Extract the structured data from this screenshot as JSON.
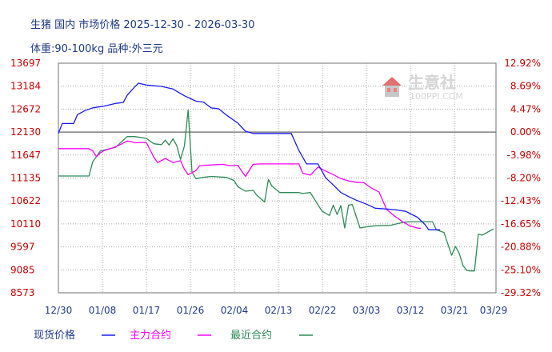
{
  "header": {
    "line1": "生猪  国内  市场价格  2025-12-30 - 2026-03-30",
    "line2": "体重:90-100kg  品种:外三元"
  },
  "watermark": {
    "name": "生意社",
    "url": "100PPI.COM"
  },
  "colors": {
    "title": "#1f3a8a",
    "left_axis": "#cc0000",
    "right_axis": "#cc0000",
    "spot": "#1a1aff",
    "main_contract": "#ff00ff",
    "recent_contract": "#2e8b57",
    "grid": "#a9a9a9",
    "baseline": "#808080"
  },
  "chart_data": {
    "type": "line",
    "ylim": [
      8573,
      13697
    ],
    "ylim_right": [
      -29.32,
      12.92
    ],
    "grid": true,
    "legend_position": "bottom-left",
    "y_ticks_left": [
      "13697",
      "13184",
      "12672",
      "12130",
      "11647",
      "11135",
      "10622",
      "10110",
      "9597",
      "9085",
      "8573"
    ],
    "y_ticks_right": [
      "12.92%",
      "8.69%",
      "4.47%",
      "0.00%",
      "-3.98%",
      "-8.20%",
      "-12.43%",
      "-16.65%",
      "-20.88%",
      "-25.10%",
      "-29.32%"
    ],
    "x_ticks": [
      "12/30",
      "01/08",
      "01/17",
      "01/26",
      "02/04",
      "02/13",
      "02/22",
      "03/03",
      "03/12",
      "03/21",
      "03/29"
    ],
    "x_tick_days": [
      0,
      9,
      18,
      27,
      36,
      45,
      54,
      63,
      72,
      81,
      89
    ],
    "series": [
      {
        "name": "现货价格",
        "color": "#1a1aff",
        "points": [
          [
            0,
            12130
          ],
          [
            1,
            12350
          ],
          [
            4,
            12350
          ],
          [
            5,
            12550
          ],
          [
            7,
            12640
          ],
          [
            9,
            12700
          ],
          [
            12,
            12740
          ],
          [
            15,
            12800
          ],
          [
            17,
            12820
          ],
          [
            18,
            12980
          ],
          [
            20,
            13170
          ],
          [
            21,
            13250
          ],
          [
            23,
            13210
          ],
          [
            27,
            13180
          ],
          [
            30,
            13120
          ],
          [
            33,
            12970
          ],
          [
            36,
            12850
          ],
          [
            38,
            12830
          ],
          [
            40,
            12700
          ],
          [
            42,
            12680
          ],
          [
            44,
            12540
          ],
          [
            47,
            12360
          ],
          [
            49,
            12180
          ],
          [
            51,
            12130
          ],
          [
            56,
            12130
          ],
          [
            61,
            12130
          ],
          [
            63,
            11750
          ],
          [
            65,
            11450
          ],
          [
            68,
            11450
          ],
          [
            70,
            11140
          ],
          [
            72,
            10980
          ],
          [
            74,
            10810
          ],
          [
            76,
            10720
          ],
          [
            78,
            10640
          ],
          [
            81,
            10540
          ],
          [
            83,
            10460
          ],
          [
            88,
            10430
          ],
          [
            91,
            10390
          ],
          [
            94,
            10260
          ],
          [
            96,
            10100
          ],
          [
            97,
            9980
          ],
          [
            100,
            9980
          ]
        ]
      },
      {
        "name": "主力合约",
        "color": "#ff00ff",
        "points": [
          [
            0,
            11790
          ],
          [
            4,
            11790
          ],
          [
            8,
            11790
          ],
          [
            9,
            11740
          ],
          [
            10,
            11610
          ],
          [
            11,
            11700
          ],
          [
            12,
            11750
          ],
          [
            14,
            11800
          ],
          [
            16,
            11870
          ],
          [
            18,
            11960
          ],
          [
            19,
            11950
          ],
          [
            20,
            11920
          ],
          [
            23,
            11930
          ],
          [
            25,
            11600
          ],
          [
            26,
            11480
          ],
          [
            28,
            11570
          ],
          [
            30,
            11480
          ],
          [
            32,
            11520
          ],
          [
            33,
            11330
          ],
          [
            34,
            11210
          ],
          [
            36,
            11300
          ],
          [
            37,
            11410
          ],
          [
            43,
            11440
          ],
          [
            45,
            11410
          ],
          [
            47,
            11420
          ],
          [
            48,
            11290
          ],
          [
            49,
            11170
          ],
          [
            51,
            11440
          ],
          [
            53,
            11450
          ],
          [
            59,
            11450
          ],
          [
            63,
            11450
          ],
          [
            64,
            11240
          ],
          [
            66,
            11200
          ],
          [
            68,
            11380
          ],
          [
            70,
            11290
          ],
          [
            72,
            11210
          ],
          [
            74,
            11120
          ],
          [
            76,
            11070
          ],
          [
            78,
            11040
          ],
          [
            80,
            11030
          ],
          [
            82,
            10910
          ],
          [
            84,
            10820
          ],
          [
            86,
            10430
          ],
          [
            88,
            10290
          ],
          [
            90,
            10170
          ],
          [
            92,
            10070
          ],
          [
            94,
            10020
          ],
          [
            95,
            10010
          ]
        ]
      },
      {
        "name": "最近合约",
        "color": "#2e8b57",
        "points": [
          [
            0,
            11180
          ],
          [
            4,
            11180
          ],
          [
            8,
            11180
          ],
          [
            9,
            11500
          ],
          [
            11,
            11740
          ],
          [
            15,
            11820
          ],
          [
            18,
            12060
          ],
          [
            20,
            12060
          ],
          [
            23,
            12020
          ],
          [
            25,
            11900
          ],
          [
            27,
            11880
          ],
          [
            28,
            11980
          ],
          [
            29,
            11870
          ],
          [
            30,
            12010
          ],
          [
            31,
            11860
          ],
          [
            32,
            11550
          ],
          [
            33,
            11850
          ],
          [
            34,
            12650
          ],
          [
            35,
            11270
          ],
          [
            36,
            11120
          ],
          [
            38,
            11150
          ],
          [
            40,
            11170
          ],
          [
            44,
            11150
          ],
          [
            46,
            11080
          ],
          [
            47,
            10940
          ],
          [
            49,
            10840
          ],
          [
            51,
            10860
          ],
          [
            52,
            10750
          ],
          [
            54,
            10600
          ],
          [
            55,
            11100
          ],
          [
            56,
            10950
          ],
          [
            58,
            10810
          ],
          [
            60,
            10810
          ],
          [
            63,
            10810
          ],
          [
            64,
            10790
          ],
          [
            66,
            10810
          ],
          [
            69,
            10400
          ],
          [
            71,
            10300
          ],
          [
            72,
            10530
          ],
          [
            73,
            10320
          ],
          [
            74,
            10520
          ],
          [
            75,
            10020
          ],
          [
            76,
            10530
          ],
          [
            77,
            10540
          ],
          [
            79,
            10020
          ],
          [
            81,
            10050
          ],
          [
            83,
            10070
          ],
          [
            87,
            10080
          ],
          [
            90,
            10140
          ],
          [
            92,
            10160
          ],
          [
            96,
            10160
          ],
          [
            98,
            10160
          ],
          [
            99,
            9980
          ],
          [
            101,
            9920
          ],
          [
            103,
            9410
          ],
          [
            104,
            9610
          ],
          [
            105,
            9450
          ],
          [
            106,
            9180
          ],
          [
            107,
            9070
          ],
          [
            108,
            9060
          ],
          [
            109,
            9060
          ],
          [
            110,
            9880
          ],
          [
            111,
            9860
          ],
          [
            114,
            10000
          ]
        ]
      }
    ]
  }
}
